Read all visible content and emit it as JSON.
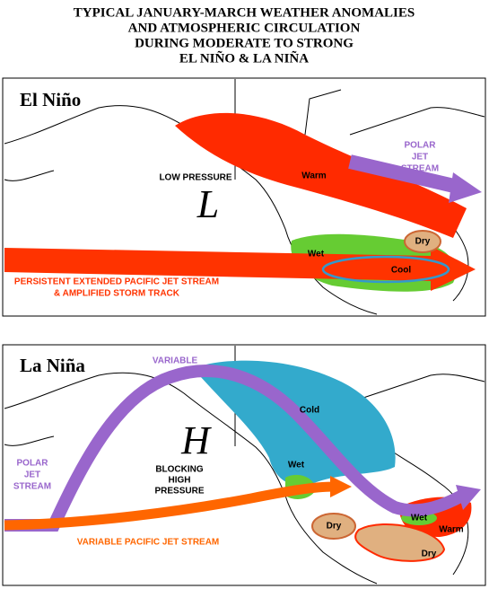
{
  "title": [
    "TYPICAL JANUARY-MARCH WEATHER ANOMALIES",
    "AND ATMOSPHERIC CIRCULATION",
    "DURING MODERATE TO STRONG",
    "EL NIÑO & LA NIÑA"
  ],
  "el_nino": {
    "label": "El Niño",
    "low_pressure": "LOW PRESSURE",
    "low_symbol": "L",
    "warm": "Warm",
    "polar_jet_stream": [
      "POLAR",
      "JET",
      "STREAM"
    ],
    "dry": "Dry",
    "wet": "Wet",
    "cool": "Cool",
    "pacific_jet_stream": [
      "PERSISTENT EXTENDED PACIFIC JET STREAM",
      "& AMPLIFIED STORM TRACK"
    ]
  },
  "la_nina": {
    "label": "La Niña",
    "variable": "VARIABLE",
    "cold": "Cold",
    "high_symbol": "H",
    "blocking_high_pressure": [
      "BLOCKING",
      "HIGH",
      "PRESSURE"
    ],
    "wet_west": "Wet",
    "polar_jet_stream": [
      "POLAR",
      "JET",
      "STREAM"
    ],
    "wet_east": "Wet",
    "warm": "Warm",
    "dry_west": "Dry",
    "dry_east": "Dry",
    "pacific_jet_stream": "VARIABLE PACIFIC JET STREAM"
  }
}
